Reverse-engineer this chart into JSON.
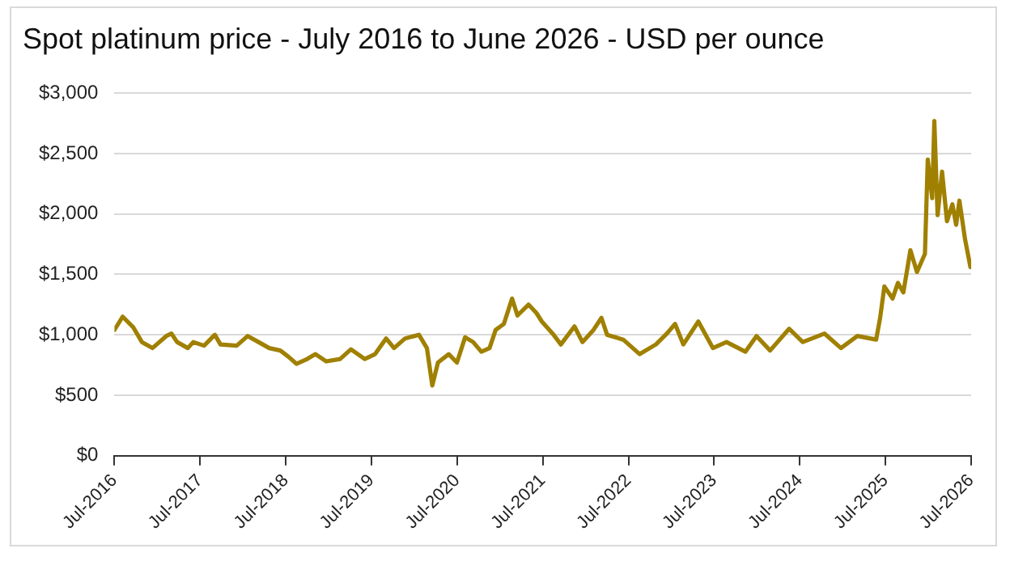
{
  "chart_data": {
    "type": "line",
    "title": "Spot platinum price - July 2016 to June 2026 - USD per ounce",
    "x": [
      "2016-07-01",
      "2016-08-05",
      "2016-09-20",
      "2016-10-26",
      "2016-12-10",
      "2017-02-07",
      "2017-03-01",
      "2017-03-25",
      "2017-05-10",
      "2017-06-02",
      "2017-07-18",
      "2017-09-02",
      "2017-09-26",
      "2017-12-04",
      "2018-01-20",
      "2018-03-07",
      "2018-04-22",
      "2018-06-08",
      "2018-07-12",
      "2018-08-16",
      "2018-10-01",
      "2018-11-05",
      "2018-12-21",
      "2019-02-18",
      "2019-04-05",
      "2019-06-03",
      "2019-07-17",
      "2019-09-02",
      "2019-10-06",
      "2019-11-22",
      "2020-01-20",
      "2020-02-23",
      "2020-03-17",
      "2020-04-10",
      "2020-05-26",
      "2020-06-30",
      "2020-08-04",
      "2020-09-07",
      "2020-10-12",
      "2020-11-16",
      "2020-12-12",
      "2021-01-16",
      "2021-02-20",
      "2021-03-15",
      "2021-05-01",
      "2021-06-04",
      "2021-06-27",
      "2021-08-12",
      "2021-09-16",
      "2021-11-13",
      "2021-12-17",
      "2022-02-02",
      "2022-03-08",
      "2022-04-01",
      "2022-06-09",
      "2022-08-18",
      "2022-10-26",
      "2022-12-12",
      "2023-01-16",
      "2023-02-20",
      "2023-04-25",
      "2023-06-26",
      "2023-08-23",
      "2023-11-12",
      "2023-12-29",
      "2024-02-25",
      "2024-05-16",
      "2024-07-13",
      "2024-10-14",
      "2024-12-23",
      "2025-03-03",
      "2025-05-22",
      "2025-06-08",
      "2025-06-26",
      "2025-07-31",
      "2025-08-23",
      "2025-09-15",
      "2025-10-15",
      "2025-11-12",
      "2025-12-16",
      "2025-12-28",
      "2026-01-16",
      "2026-01-25",
      "2026-02-08",
      "2026-02-27",
      "2026-03-20",
      "2026-04-12",
      "2026-04-28",
      "2026-05-12",
      "2026-06-05",
      "2026-06-28"
    ],
    "series": [
      {
        "color": "#a08000",
        "values": [
          1040,
          1150,
          1060,
          940,
          890,
          990,
          1010,
          940,
          890,
          940,
          910,
          1000,
          920,
          910,
          990,
          940,
          890,
          870,
          820,
          760,
          800,
          840,
          780,
          800,
          880,
          800,
          840,
          970,
          890,
          970,
          1000,
          890,
          580,
          770,
          840,
          770,
          980,
          940,
          860,
          890,
          1040,
          1090,
          1300,
          1160,
          1250,
          1180,
          1110,
          1010,
          920,
          1070,
          940,
          1040,
          1140,
          1000,
          960,
          840,
          920,
          1010,
          1090,
          920,
          1110,
          890,
          940,
          860,
          990,
          870,
          1050,
          940,
          1010,
          890,
          990,
          960,
          1140,
          1400,
          1300,
          1430,
          1350,
          1700,
          1520,
          1670,
          2450,
          2130,
          2770,
          1990,
          2350,
          1940,
          2080,
          1910,
          2110,
          1790,
          1560
        ]
      }
    ],
    "xlim": [
      "2016-07-01",
      "2026-07-01"
    ],
    "xticks": [
      {
        "value": "2016-07-01",
        "label": "Jul-2016"
      },
      {
        "value": "2017-07-01",
        "label": "Jul-2017"
      },
      {
        "value": "2018-07-01",
        "label": "Jul-2018"
      },
      {
        "value": "2019-07-01",
        "label": "Jul-2019"
      },
      {
        "value": "2020-07-01",
        "label": "Jul-2020"
      },
      {
        "value": "2021-07-01",
        "label": "Jul-2021"
      },
      {
        "value": "2022-07-01",
        "label": "Jul-2022"
      },
      {
        "value": "2023-07-01",
        "label": "Jul-2023"
      },
      {
        "value": "2024-07-01",
        "label": "Jul-2024"
      },
      {
        "value": "2025-07-01",
        "label": "Jul-2025"
      },
      {
        "value": "2026-07-01",
        "label": "Jul-2026"
      }
    ],
    "ylim": [
      0,
      3000
    ],
    "yticks": [
      {
        "value": 0,
        "label": "$0"
      },
      {
        "value": 500,
        "label": "$500"
      },
      {
        "value": 1000,
        "label": "$1,000"
      },
      {
        "value": 1500,
        "label": "$1,500"
      },
      {
        "value": 2000,
        "label": "$2,000"
      },
      {
        "value": 2500,
        "label": "$2,500"
      },
      {
        "value": 3000,
        "label": "$3,000"
      }
    ],
    "grid": "y",
    "legend": false,
    "marker": "none",
    "line_style": "solid"
  }
}
